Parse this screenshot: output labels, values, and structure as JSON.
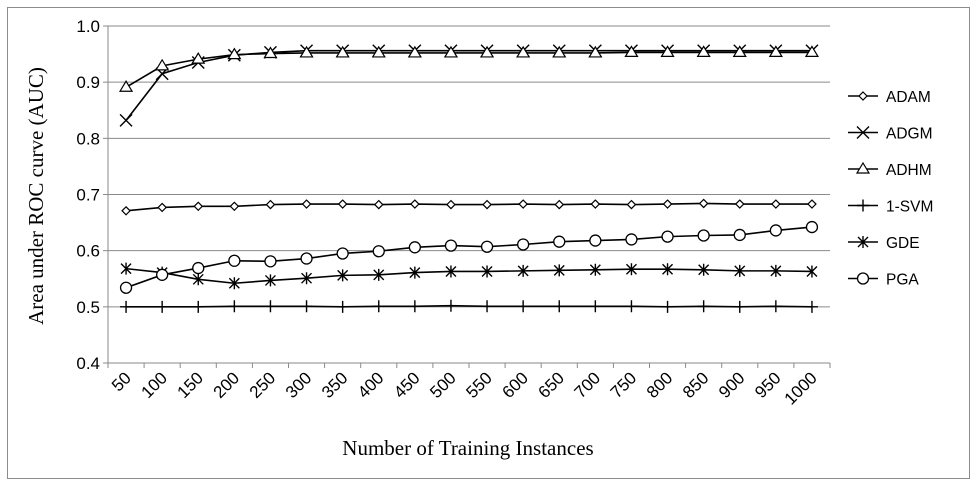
{
  "chart_data": {
    "type": "line",
    "xlabel": "Number of Training Instances",
    "ylabel": "Area under ROC curve (AUC)",
    "categories": [
      "50",
      "100",
      "150",
      "200",
      "250",
      "300",
      "350",
      "400",
      "450",
      "500",
      "550",
      "600",
      "650",
      "700",
      "750",
      "800",
      "850",
      "900",
      "950",
      "1000"
    ],
    "ylim": [
      0.4,
      1.0
    ],
    "yticks": [
      "0.4",
      "0.5",
      "0.6",
      "0.7",
      "0.8",
      "0.9",
      "1.0"
    ],
    "grid": "horizontal",
    "legend_position": "right",
    "series": [
      {
        "name": "ADAM",
        "marker": "diamond",
        "values": [
          0.671,
          0.677,
          0.679,
          0.679,
          0.682,
          0.683,
          0.683,
          0.682,
          0.683,
          0.682,
          0.682,
          0.683,
          0.682,
          0.683,
          0.682,
          0.683,
          0.684,
          0.683,
          0.683,
          0.683
        ]
      },
      {
        "name": "ADGM",
        "marker": "x",
        "values": [
          0.832,
          0.915,
          0.935,
          0.948,
          0.953,
          0.956,
          0.956,
          0.956,
          0.956,
          0.956,
          0.956,
          0.956,
          0.956,
          0.956,
          0.956,
          0.956,
          0.956,
          0.956,
          0.956,
          0.956
        ]
      },
      {
        "name": "ADHM",
        "marker": "triangle",
        "values": [
          0.891,
          0.929,
          0.941,
          0.949,
          0.951,
          0.952,
          0.952,
          0.952,
          0.952,
          0.952,
          0.952,
          0.952,
          0.952,
          0.952,
          0.953,
          0.953,
          0.953,
          0.953,
          0.953,
          0.953
        ]
      },
      {
        "name": "1-SVM",
        "marker": "plus",
        "values": [
          0.5,
          0.5,
          0.5,
          0.501,
          0.501,
          0.501,
          0.5,
          0.501,
          0.501,
          0.502,
          0.501,
          0.501,
          0.501,
          0.501,
          0.501,
          0.5,
          0.501,
          0.5,
          0.501,
          0.5
        ]
      },
      {
        "name": "GDE",
        "marker": "star",
        "values": [
          0.568,
          0.561,
          0.549,
          0.542,
          0.547,
          0.551,
          0.556,
          0.557,
          0.561,
          0.563,
          0.563,
          0.564,
          0.565,
          0.566,
          0.567,
          0.567,
          0.566,
          0.564,
          0.564,
          0.563
        ]
      },
      {
        "name": "PGA",
        "marker": "circle",
        "values": [
          0.534,
          0.557,
          0.569,
          0.582,
          0.581,
          0.586,
          0.595,
          0.599,
          0.606,
          0.609,
          0.607,
          0.611,
          0.616,
          0.618,
          0.62,
          0.625,
          0.627,
          0.628,
          0.636,
          0.642
        ]
      }
    ]
  }
}
